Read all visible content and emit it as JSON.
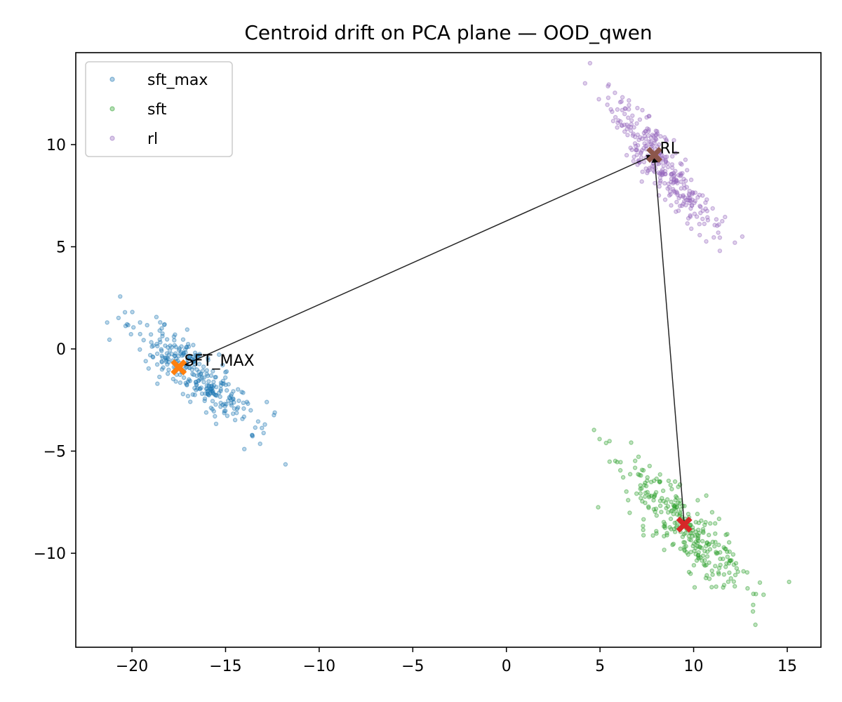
{
  "chart_data": {
    "type": "scatter",
    "title": "Centroid drift on PCA plane — OOD_qwen",
    "xlabel": "",
    "ylabel": "",
    "xlim": [
      -23.0,
      16.8
    ],
    "ylim": [
      -14.6,
      14.5
    ],
    "x_ticks": [
      -20,
      -15,
      -10,
      -5,
      0,
      5,
      10,
      15
    ],
    "y_ticks": [
      -10,
      -5,
      0,
      5,
      10
    ],
    "x_tick_labels": [
      "−20",
      "−15",
      "−10",
      "−5",
      "0",
      "5",
      "10",
      "15"
    ],
    "y_tick_labels": [
      "−10",
      "−5",
      "0",
      "5",
      "10"
    ],
    "grid": false,
    "legend_position": "upper-left",
    "series": [
      {
        "name": "sft_max",
        "color": "#1f77b4",
        "cluster": {
          "center": [
            -16.6,
            -1.2
          ],
          "count": 300,
          "sd_major": 1.95,
          "sd_minor": 0.55,
          "angle_deg": -38,
          "seed": 11
        },
        "outliers": [
          [
            -21.2,
            0.45
          ],
          [
            -11.8,
            -5.65
          ],
          [
            -14.0,
            -4.9
          ],
          [
            -12.9,
            -3.7
          ],
          [
            -12.8,
            -2.6
          ]
        ]
      },
      {
        "name": "sft",
        "color": "#2ca02c",
        "cluster": {
          "center": [
            9.4,
            -8.6
          ],
          "count": 300,
          "sd_major": 2.25,
          "sd_minor": 0.62,
          "angle_deg": -45,
          "seed": 23
        },
        "outliers": [
          [
            4.9,
            -7.75
          ],
          [
            15.1,
            -11.4
          ],
          [
            13.3,
            -13.5
          ]
        ]
      },
      {
        "name": "rl",
        "color": "#9467bd",
        "cluster": {
          "center": [
            8.3,
            9.1
          ],
          "count": 300,
          "sd_major": 2.0,
          "sd_minor": 0.5,
          "angle_deg": -50,
          "seed": 37
        },
        "outliers": [
          [
            4.2,
            13.0
          ],
          [
            12.6,
            5.5
          ],
          [
            11.4,
            4.8
          ],
          [
            12.2,
            5.2
          ]
        ]
      }
    ],
    "centroids": [
      {
        "label": "SFT_MAX",
        "x": -17.5,
        "y": -0.9,
        "color": "#ff7f0e"
      },
      {
        "label": "RL",
        "x": 7.9,
        "y": 9.5,
        "color": "#8c564b"
      },
      {
        "label": "",
        "x": 9.5,
        "y": -8.6,
        "color": "#d62728"
      }
    ],
    "arrows": [
      {
        "from": [
          -17.5,
          -0.9
        ],
        "to": [
          7.9,
          9.5
        ]
      },
      {
        "from": [
          9.5,
          -8.6
        ],
        "to": [
          7.9,
          9.5
        ]
      }
    ]
  }
}
